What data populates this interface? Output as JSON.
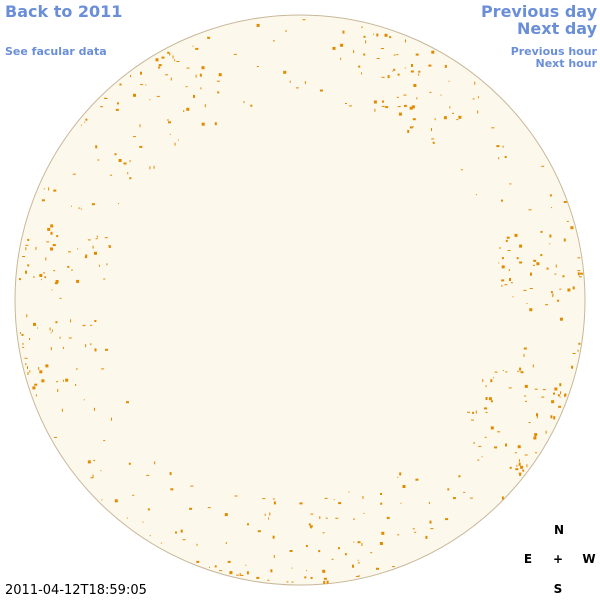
{
  "nav": {
    "back": "Back to 2011",
    "facular": "See facular data",
    "previous_day": "Previous day",
    "next_day": "Next day",
    "previous_hour": "Previous hour",
    "next_hour": "Next hour"
  },
  "timestamp": "2011-04-12T18:59:05",
  "compass": {
    "north": "N",
    "east": "E",
    "center": "+",
    "west": "W",
    "south": "S"
  }
}
